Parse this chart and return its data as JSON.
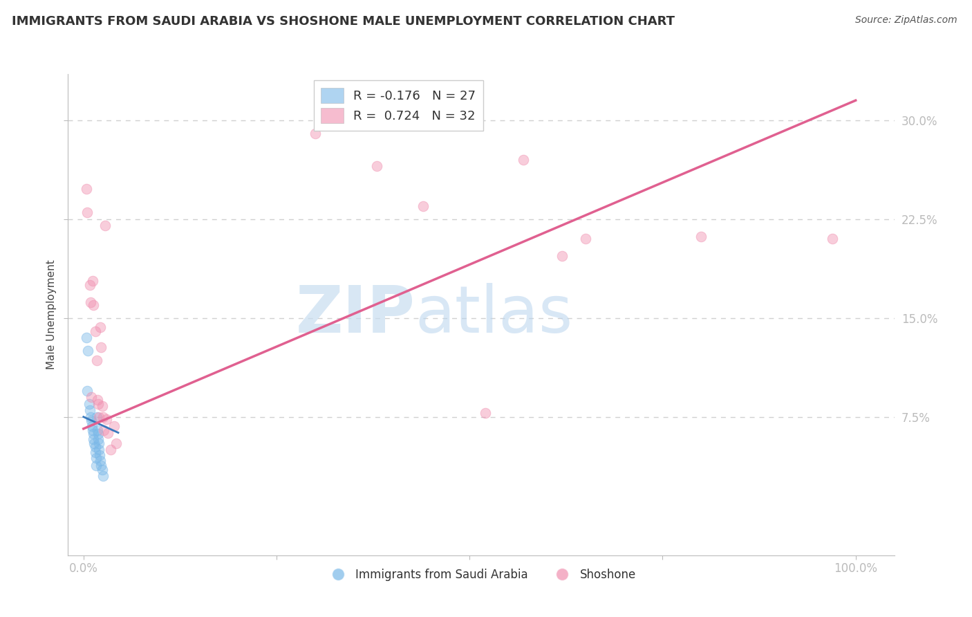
{
  "title": "IMMIGRANTS FROM SAUDI ARABIA VS SHOSHONE MALE UNEMPLOYMENT CORRELATION CHART",
  "source": "Source: ZipAtlas.com",
  "ylabel": "Male Unemployment",
  "xlim": [
    -0.02,
    1.05
  ],
  "ylim": [
    -0.03,
    0.335
  ],
  "x_ticks": [
    0.0,
    0.25,
    0.5,
    0.75,
    1.0
  ],
  "x_tick_labels": [
    "0.0%",
    "",
    "",
    "",
    "100.0%"
  ],
  "y_ticks": [
    0.075,
    0.15,
    0.225,
    0.3
  ],
  "y_tick_labels": [
    "7.5%",
    "15.0%",
    "22.5%",
    "30.0%"
  ],
  "legend_entries": [
    {
      "label": "R = -0.176",
      "n": "N = 27",
      "color": "#a8c8f0"
    },
    {
      "label": "R =  0.724",
      "n": "N = 32",
      "color": "#f8b0c8"
    }
  ],
  "legend_series": [
    "Immigrants from Saudi Arabia",
    "Shoshone"
  ],
  "watermark_zip": "ZIP",
  "watermark_atlas": "atlas",
  "title_fontsize": 13,
  "source_fontsize": 10,
  "blue_scatter": [
    [
      0.004,
      0.135
    ],
    [
      0.005,
      0.095
    ],
    [
      0.006,
      0.125
    ],
    [
      0.007,
      0.085
    ],
    [
      0.008,
      0.08
    ],
    [
      0.009,
      0.075
    ],
    [
      0.01,
      0.072
    ],
    [
      0.011,
      0.068
    ],
    [
      0.012,
      0.065
    ],
    [
      0.013,
      0.062
    ],
    [
      0.013,
      0.058
    ],
    [
      0.014,
      0.055
    ],
    [
      0.015,
      0.052
    ],
    [
      0.015,
      0.048
    ],
    [
      0.016,
      0.044
    ],
    [
      0.016,
      0.038
    ],
    [
      0.017,
      0.075
    ],
    [
      0.018,
      0.065
    ],
    [
      0.019,
      0.062
    ],
    [
      0.019,
      0.058
    ],
    [
      0.02,
      0.055
    ],
    [
      0.02,
      0.05
    ],
    [
      0.021,
      0.046
    ],
    [
      0.022,
      0.042
    ],
    [
      0.023,
      0.038
    ],
    [
      0.024,
      0.035
    ],
    [
      0.025,
      0.03
    ]
  ],
  "pink_scatter": [
    [
      0.004,
      0.248
    ],
    [
      0.005,
      0.23
    ],
    [
      0.008,
      0.175
    ],
    [
      0.009,
      0.162
    ],
    [
      0.01,
      0.09
    ],
    [
      0.012,
      0.178
    ],
    [
      0.013,
      0.16
    ],
    [
      0.015,
      0.14
    ],
    [
      0.017,
      0.118
    ],
    [
      0.018,
      0.088
    ],
    [
      0.019,
      0.085
    ],
    [
      0.02,
      0.075
    ],
    [
      0.022,
      0.143
    ],
    [
      0.023,
      0.128
    ],
    [
      0.024,
      0.083
    ],
    [
      0.025,
      0.075
    ],
    [
      0.026,
      0.065
    ],
    [
      0.028,
      0.22
    ],
    [
      0.03,
      0.073
    ],
    [
      0.032,
      0.063
    ],
    [
      0.035,
      0.05
    ],
    [
      0.04,
      0.068
    ],
    [
      0.042,
      0.055
    ],
    [
      0.3,
      0.29
    ],
    [
      0.38,
      0.265
    ],
    [
      0.44,
      0.235
    ],
    [
      0.52,
      0.078
    ],
    [
      0.57,
      0.27
    ],
    [
      0.62,
      0.197
    ],
    [
      0.65,
      0.21
    ],
    [
      0.8,
      0.212
    ],
    [
      0.97,
      0.21
    ]
  ],
  "blue_line_x": [
    0.0,
    0.045
  ],
  "blue_line_y": [
    0.075,
    0.063
  ],
  "pink_line_x": [
    0.0,
    1.0
  ],
  "pink_line_y": [
    0.066,
    0.315
  ],
  "scatter_size": 110,
  "scatter_alpha": 0.45,
  "blue_color": "#7ab8e8",
  "pink_color": "#f090b0",
  "blue_line_color": "#3a7abd",
  "pink_line_color": "#e06090",
  "background_color": "#ffffff",
  "grid_color": "#d0d0d0"
}
